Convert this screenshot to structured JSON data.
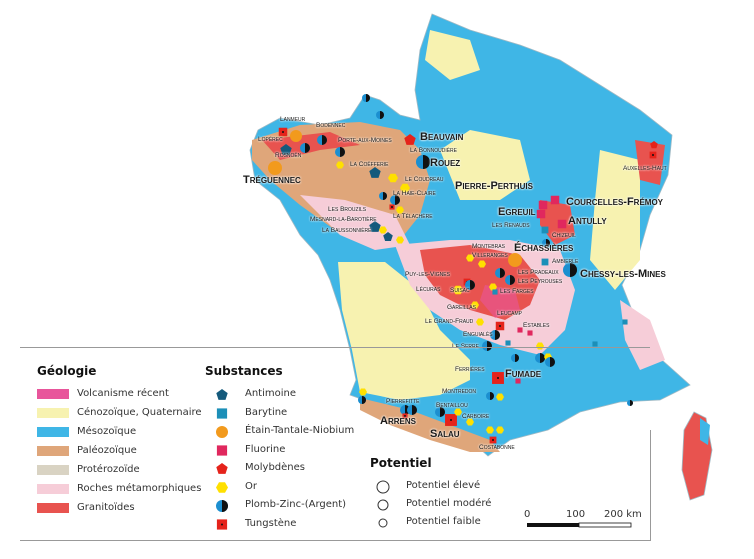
{
  "legend": {
    "geology_title": "Géologie",
    "geology": [
      {
        "label": "Volcanisme récent",
        "color": "#e8559b"
      },
      {
        "label": "Cénozoïque, Quaternaire",
        "color": "#f7f2b0"
      },
      {
        "label": "Mésozoïque",
        "color": "#3fb6e6"
      },
      {
        "label": "Paléozoïque",
        "color": "#dfa67a"
      },
      {
        "label": "Protérozoïde",
        "color": "#d9d3c3"
      },
      {
        "label": "Roches métamorphiques",
        "color": "#f6cdd8"
      },
      {
        "label": "Granitoïdes",
        "color": "#e8534f"
      }
    ],
    "substances_title": "Substances",
    "substances": [
      {
        "label": "Antimoine",
        "icon": "pentagon-icon",
        "color": "#145a7c"
      },
      {
        "label": "Barytine",
        "icon": "square-icon",
        "color": "#1c8fb8"
      },
      {
        "label": "Étain-Tantale-Niobium",
        "icon": "circle-icon",
        "color": "#f29a1d"
      },
      {
        "label": "Fluorine",
        "icon": "square-icon",
        "color": "#e0285e"
      },
      {
        "label": "Molybdènes",
        "icon": "pentagon-icon",
        "color": "#e5231b"
      },
      {
        "label": "Or",
        "icon": "hexagon-icon",
        "color": "#ffe000"
      },
      {
        "label": "Plomb-Zinc-(Argent)",
        "icon": "half-circle-icon",
        "color": "#1c8fd0"
      },
      {
        "label": "Tungstène",
        "icon": "dotted-square-icon",
        "color": "#e5231b"
      }
    ],
    "potential_title": "Potentiel",
    "potential": [
      {
        "label": "Potentiel élevé"
      },
      {
        "label": "Potentiel modéré"
      },
      {
        "label": "Potentiel faible"
      }
    ],
    "scale": {
      "ticks": [
        "0",
        "100",
        "200 km"
      ]
    }
  },
  "sites": [
    {
      "name": "Lanmeur"
    },
    {
      "name": "Bodennec"
    },
    {
      "name": "Lopérec"
    },
    {
      "name": "Rosnoën"
    },
    {
      "name": "Porte-aux-Moines"
    },
    {
      "name": "Beauvain"
    },
    {
      "name": "La Bonnoudière"
    },
    {
      "name": "Rouez"
    },
    {
      "name": "Tréguennec"
    },
    {
      "name": "La Coëfferie"
    },
    {
      "name": "Le Coudreau"
    },
    {
      "name": "La Haie-Claire"
    },
    {
      "name": "Les Brouzils"
    },
    {
      "name": "Mesnard-la-Barotière"
    },
    {
      "name": "La Baussonnière"
    },
    {
      "name": "La Télachère"
    },
    {
      "name": "Pierre-Perthuis"
    },
    {
      "name": "Courcelles-Frémoy"
    },
    {
      "name": "Egreuil"
    },
    {
      "name": "Les Renauds"
    },
    {
      "name": "Antully"
    },
    {
      "name": "Chizeuil"
    },
    {
      "name": "Montebras"
    },
    {
      "name": "Échassières"
    },
    {
      "name": "Villeranges"
    },
    {
      "name": "Ambierle"
    },
    {
      "name": "Chessy-les-Mines"
    },
    {
      "name": "Les Pradeaux"
    },
    {
      "name": "Les Peyrouses"
    },
    {
      "name": "Puy-les-Vignes"
    },
    {
      "name": "Lécuras"
    },
    {
      "name": "Suisac"
    },
    {
      "name": "Les Farges"
    },
    {
      "name": "Gareillas"
    },
    {
      "name": "Le Grand-Fraud"
    },
    {
      "name": "Leucamp"
    },
    {
      "name": "Estables"
    },
    {
      "name": "Enguialès"
    },
    {
      "name": "Le Serre"
    },
    {
      "name": "Ferrières"
    },
    {
      "name": "Fumade"
    },
    {
      "name": "Montredon"
    },
    {
      "name": "Pierrefitte"
    },
    {
      "name": "Arrens"
    },
    {
      "name": "Bentaillou"
    },
    {
      "name": "Carboire"
    },
    {
      "name": "Salau"
    },
    {
      "name": "Costabonne"
    },
    {
      "name": "Auxelles-Haut"
    }
  ]
}
